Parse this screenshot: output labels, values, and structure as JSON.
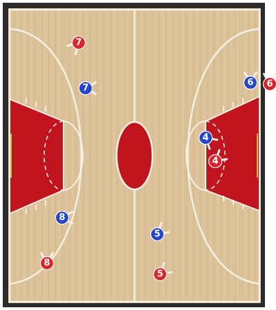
{
  "colors": {
    "frame": "#2b2b2b",
    "floor_light": "#dcc29a",
    "floor_dark": "#caa87a",
    "line": "#f5f0e6",
    "paint": "#c0141f",
    "center_circle": "#c0141f",
    "team_red": "#d9252c",
    "team_blue": "#2345c8",
    "number_text": "#ffffff"
  },
  "players": [
    {
      "team": "red",
      "number": "7",
      "dir": "sw"
    },
    {
      "team": "blue",
      "number": "7",
      "dir": "e"
    },
    {
      "team": "blue",
      "number": "8",
      "dir": "e"
    },
    {
      "team": "red",
      "number": "8",
      "dir": "n"
    },
    {
      "team": "blue",
      "number": "5",
      "dir": "ne"
    },
    {
      "team": "red",
      "number": "5",
      "dir": "ne"
    },
    {
      "team": "blue",
      "number": "4",
      "dir": "se"
    },
    {
      "team": "red",
      "number": "4",
      "dir": "ne"
    },
    {
      "team": "blue",
      "number": "6",
      "dir": "n"
    },
    {
      "team": "red",
      "number": "6",
      "dir": "n"
    }
  ]
}
